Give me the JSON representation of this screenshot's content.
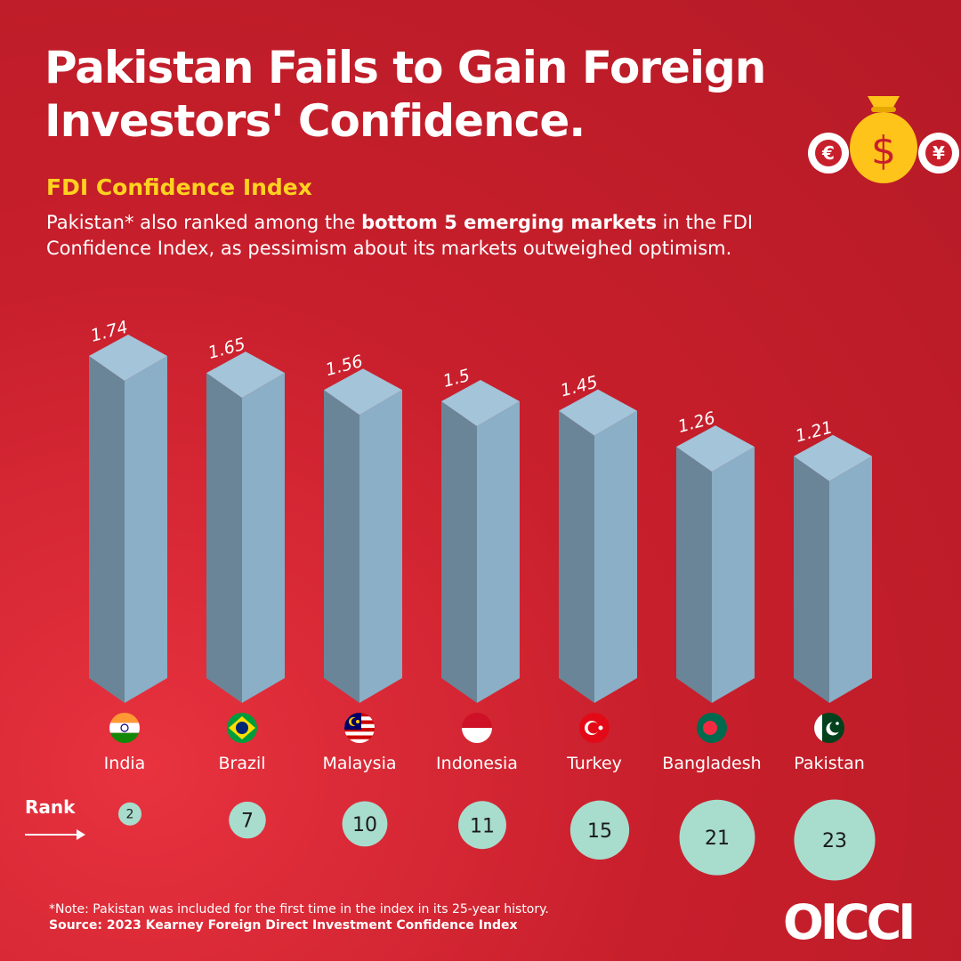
{
  "header": {
    "title_line1": "Pakistan Fails to Gain Foreign",
    "title_line2": "Investors' Confidence.",
    "subtitle": "FDI Confidence Index",
    "desc_pre": "Pakistan* also ranked among the ",
    "desc_bold": "bottom 5 emerging markets",
    "desc_post": " in the FDI Confidence Index, as pessimism about its markets outweighed optimism."
  },
  "currency_icons": [
    "euro-icon",
    "dollar-bag-icon",
    "yen-icon"
  ],
  "chart_data": {
    "type": "bar",
    "categories": [
      "India",
      "Brazil",
      "Malaysia",
      "Indonesia",
      "Turkey",
      "Bangladesh",
      "Pakistan"
    ],
    "values": [
      1.74,
      1.65,
      1.56,
      1.5,
      1.45,
      1.26,
      1.21
    ],
    "value_labels": [
      "1.74",
      "1.65",
      "1.56",
      "1.5",
      "1.45",
      "1.26",
      "1.21"
    ],
    "ranks": [
      2,
      7,
      10,
      11,
      15,
      21,
      23
    ],
    "rank_label": "Rank",
    "title": "FDI Confidence Index",
    "xlabel": "",
    "ylabel": "",
    "grid": false
  },
  "flags": {
    "India": "india-flag-icon",
    "Brazil": "brazil-flag-icon",
    "Malaysia": "malaysia-flag-icon",
    "Indonesia": "indonesia-flag-icon",
    "Turkey": "turkey-flag-icon",
    "Bangladesh": "bangladesh-flag-icon",
    "Pakistan": "pakistan-flag-icon"
  },
  "colors": {
    "background": "#c81f2c",
    "accent_yellow": "#ffd21f",
    "bar_front": "#8aafc6",
    "bar_side": "#6a8597",
    "bar_top": "#a3c4d9",
    "rank_circle": "#a8dccd"
  },
  "footer": {
    "note": "*Note: Pakistan was included for the first time in the index in its 25-year history.",
    "source": "Source: 2023 Kearney Foreign Direct Investment Confidence Index",
    "logo": "OICCI"
  }
}
